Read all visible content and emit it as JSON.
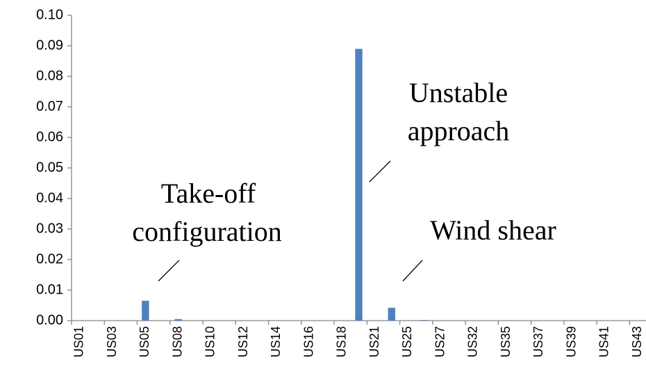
{
  "chart_data": {
    "type": "bar",
    "categories": [
      "US01",
      null,
      "US03",
      null,
      "US05",
      null,
      "US08",
      null,
      "US10",
      null,
      "US12",
      null,
      "US14",
      null,
      "US16",
      null,
      "US18",
      null,
      "US21",
      null,
      "US25",
      null,
      "US27",
      null,
      "US32",
      null,
      "US35",
      null,
      "US37",
      null,
      "US39",
      null,
      "US41",
      null,
      "US43"
    ],
    "values": [
      0,
      0,
      0,
      0,
      0.0065,
      0,
      0.0005,
      0,
      0,
      0,
      0,
      0,
      0,
      0,
      0,
      0,
      0,
      0.089,
      0,
      0.0042,
      0,
      0.0002,
      0,
      0,
      0,
      0,
      0,
      0,
      0,
      0,
      0,
      0,
      0,
      0,
      0
    ],
    "color": "#4f81bd",
    "ylim": [
      0,
      0.1
    ],
    "yticks": [
      {
        "value": 0,
        "label": "0.00"
      },
      {
        "value": 0.01,
        "label": "0.01"
      },
      {
        "value": 0.02,
        "label": "0.02"
      },
      {
        "value": 0.03,
        "label": "0.03"
      },
      {
        "value": 0.04,
        "label": "0.04"
      },
      {
        "value": 0.05,
        "label": "0.05"
      },
      {
        "value": 0.06,
        "label": "0.06"
      },
      {
        "value": 0.07,
        "label": "0.07"
      },
      {
        "value": 0.08,
        "label": "0.08"
      },
      {
        "value": 0.09,
        "label": "0.09"
      },
      {
        "value": 0.1,
        "label": "0.10"
      }
    ],
    "grid": false,
    "annotations": [
      {
        "text": [
          "Take-off",
          "configuration"
        ]
      },
      {
        "text": [
          "Unstable",
          "approach"
        ]
      },
      {
        "text": [
          "Wind shear"
        ]
      }
    ]
  }
}
